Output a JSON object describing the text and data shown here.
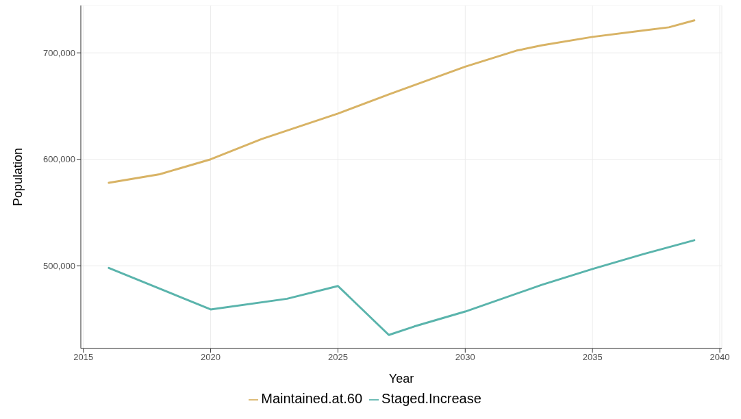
{
  "chart_data": {
    "type": "line",
    "xlabel": "Year",
    "ylabel": "Population",
    "xlim": [
      2014.9,
      2040.08
    ],
    "xticks": [
      2015,
      2020,
      2025,
      2030,
      2035,
      2040
    ],
    "ylim": [
      422300,
      744500
    ],
    "yticks": [
      {
        "value": 500000,
        "label": "500,000"
      },
      {
        "value": 600000,
        "label": "600,000"
      },
      {
        "value": 700000,
        "label": "700,000"
      }
    ],
    "grid": true,
    "legend": "bottom",
    "marker": "none",
    "line_style": "solid",
    "series": [
      {
        "name": "Maintained.at.60",
        "color": "#d8b365",
        "x": [
          2016,
          2018,
          2020,
          2022,
          2025,
          2027,
          2030,
          2032,
          2033,
          2035,
          2037,
          2038,
          2039
        ],
        "values": [
          578000,
          586000,
          600000,
          619000,
          643000,
          661000,
          687000,
          702000,
          707000,
          715000,
          721000,
          724000,
          730500
        ]
      },
      {
        "name": "Staged.Increase",
        "color": "#5ab4ac",
        "x": [
          2016,
          2020,
          2023,
          2025,
          2027,
          2028,
          2030,
          2033,
          2035,
          2037,
          2039
        ],
        "values": [
          498000,
          459000,
          469000,
          481000,
          435000,
          443000,
          457000,
          482000,
          497000,
          511000,
          524000
        ]
      }
    ]
  }
}
